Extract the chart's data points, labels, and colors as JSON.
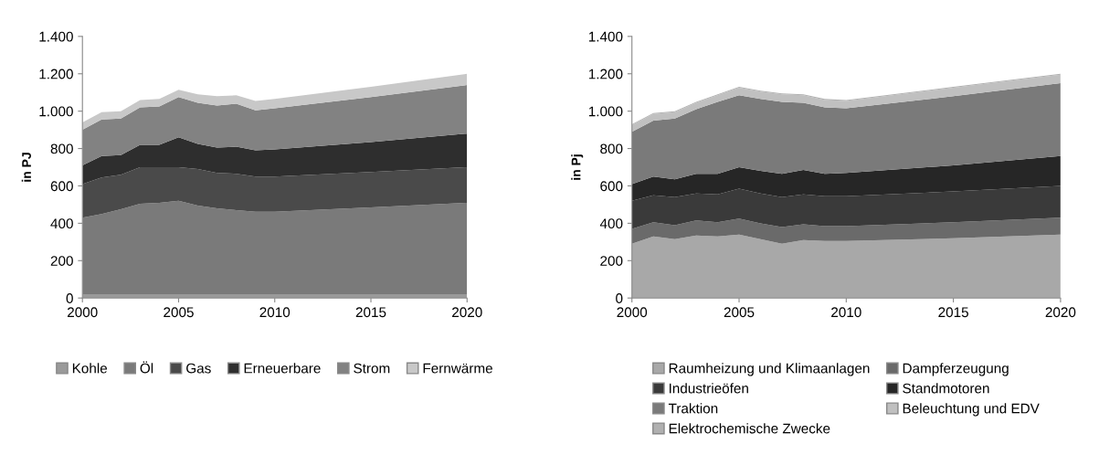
{
  "chart_data": [
    {
      "type": "area",
      "stacked": true,
      "ylabel": "in PJ",
      "legend": "bottom",
      "grid": false,
      "x": [
        2000,
        2001,
        2002,
        2003,
        2004,
        2005,
        2006,
        2007,
        2008,
        2009,
        2010,
        2015,
        2020
      ],
      "xlim": [
        2000,
        2020
      ],
      "xticks": [
        2000,
        2005,
        2010,
        2015,
        2020
      ],
      "ylim": [
        0,
        1400
      ],
      "yticks": [
        0,
        200,
        400,
        600,
        800,
        {
          "value": 1000,
          "label": "1.000"
        },
        {
          "value": 1200,
          "label": "1.200"
        },
        {
          "value": 1400,
          "label": "1.400"
        }
      ],
      "series": [
        {
          "name": "Kohle",
          "color": "#9a9a9a",
          "values": [
            20,
            20,
            20,
            20,
            20,
            20,
            20,
            20,
            20,
            20,
            20,
            20,
            20
          ]
        },
        {
          "name": "Öl",
          "color": "#7a7a7a",
          "values": [
            410,
            430,
            455,
            485,
            490,
            500,
            475,
            460,
            450,
            442,
            442,
            465,
            490
          ]
        },
        {
          "name": "Gas",
          "color": "#4a4a4a",
          "values": [
            180,
            195,
            185,
            195,
            190,
            180,
            195,
            190,
            195,
            188,
            188,
            190,
            190
          ]
        },
        {
          "name": "Erneuerbare",
          "color": "#2e2e2e",
          "values": [
            100,
            115,
            105,
            120,
            120,
            160,
            135,
            135,
            145,
            140,
            145,
            160,
            180
          ]
        },
        {
          "name": "Strom",
          "color": "#828282",
          "values": [
            190,
            195,
            195,
            200,
            205,
            215,
            220,
            225,
            230,
            215,
            220,
            240,
            260
          ]
        },
        {
          "name": "Fernwärme",
          "color": "#c8c8c8",
          "values": [
            40,
            40,
            40,
            40,
            40,
            40,
            45,
            50,
            45,
            50,
            50,
            55,
            60
          ]
        }
      ]
    },
    {
      "type": "area",
      "stacked": true,
      "ylabel": "in Pj",
      "legend": "bottom",
      "grid": false,
      "x": [
        2000,
        2001,
        2002,
        2003,
        2004,
        2005,
        2006,
        2007,
        2008,
        2009,
        2010,
        2015,
        2020
      ],
      "xlim": [
        2000,
        2020
      ],
      "xticks": [
        2000,
        2005,
        2010,
        2015,
        2020
      ],
      "ylim": [
        0,
        1400
      ],
      "yticks": [
        0,
        200,
        400,
        600,
        800,
        {
          "value": 1000,
          "label": "1.000"
        },
        {
          "value": 1200,
          "label": "1.200"
        },
        {
          "value": 1400,
          "label": "1.400"
        }
      ],
      "series": [
        {
          "name": "Raumheizung und Klimaanlagen",
          "color": "#a8a8a8",
          "values": [
            290,
            330,
            315,
            335,
            330,
            340,
            315,
            290,
            310,
            305,
            305,
            320,
            340
          ]
        },
        {
          "name": "Dampferzeugung",
          "color": "#6a6a6a",
          "values": [
            80,
            75,
            75,
            80,
            75,
            85,
            85,
            90,
            85,
            80,
            80,
            85,
            90
          ]
        },
        {
          "name": "Industrieöfen",
          "color": "#3a3a3a",
          "values": [
            150,
            145,
            150,
            145,
            150,
            160,
            160,
            160,
            160,
            160,
            160,
            165,
            170
          ]
        },
        {
          "name": "Standmotoren",
          "color": "#262626",
          "values": [
            90,
            100,
            95,
            105,
            110,
            115,
            120,
            125,
            130,
            120,
            125,
            140,
            160
          ]
        },
        {
          "name": "Traktion",
          "color": "#7a7a7a",
          "values": [
            280,
            300,
            325,
            345,
            385,
            385,
            385,
            385,
            360,
            355,
            345,
            370,
            390
          ]
        },
        {
          "name": "Beleuchtung und EDV",
          "color": "#c0c0c0",
          "values": [
            35,
            35,
            35,
            35,
            35,
            40,
            40,
            40,
            40,
            40,
            40,
            45,
            45
          ]
        },
        {
          "name": "Elektrochemische Zwecke",
          "color": "#b0b0b0",
          "values": [
            5,
            5,
            5,
            5,
            5,
            5,
            5,
            5,
            5,
            5,
            5,
            5,
            5
          ]
        }
      ]
    }
  ]
}
